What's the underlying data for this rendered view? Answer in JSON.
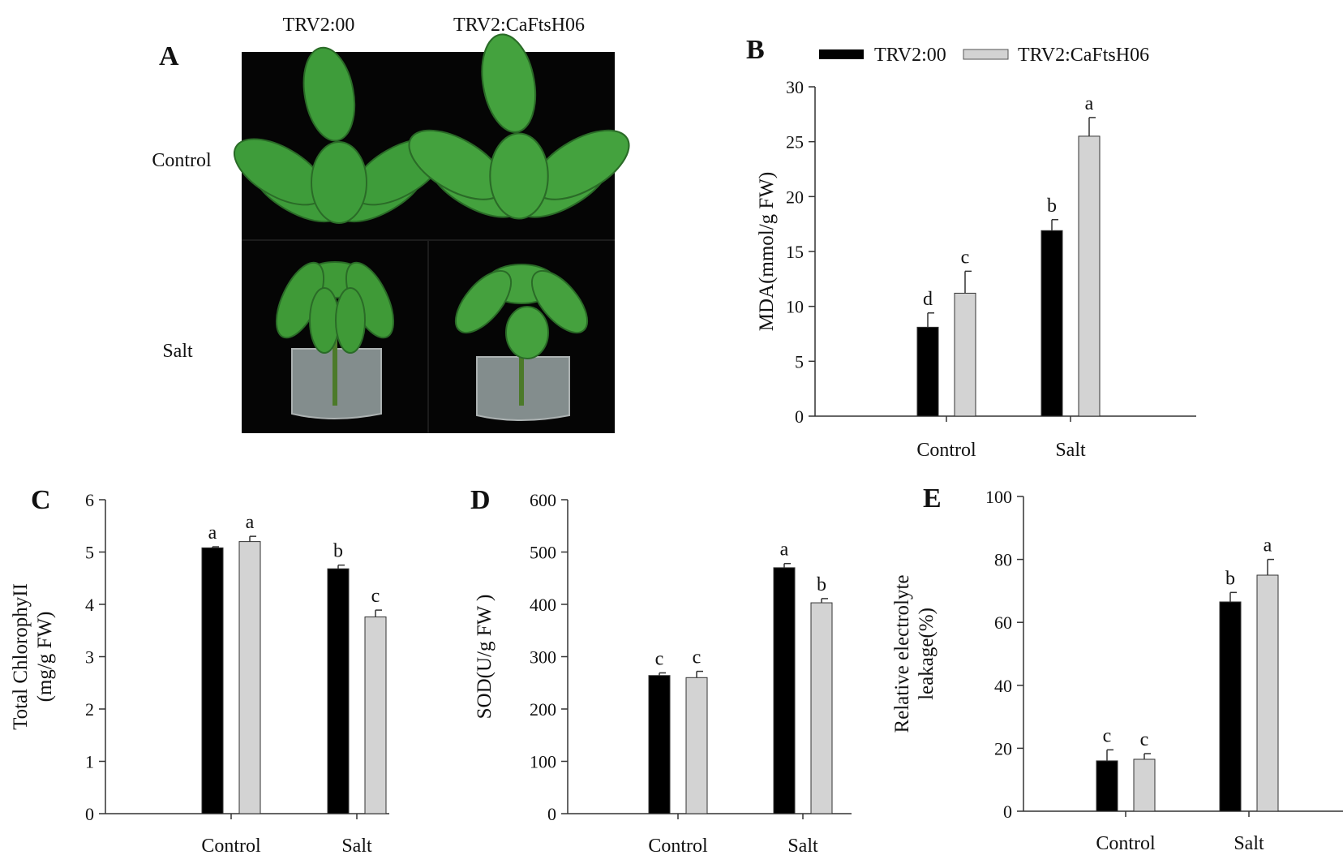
{
  "panel_a": {
    "letter": "A",
    "column_labels": [
      "TRV2:00",
      "TRV2:CaFtsH06"
    ],
    "row_labels": [
      "Control",
      "Salt"
    ]
  },
  "legend": [
    "TRV2:00",
    "TRV2:CaFtsH06"
  ],
  "colors": {
    "TRV2:00": "#000000",
    "TRV2:CaFtsH06": "#d3d3d3",
    "photo_background": "#050505",
    "leaf": "#3e9c3a"
  },
  "chart_data": [
    {
      "id": "B",
      "letter": "B",
      "type": "bar",
      "categories": [
        "Control",
        "Salt"
      ],
      "series": [
        {
          "name": "TRV2:00",
          "values": [
            8.1,
            16.9
          ],
          "errors": [
            1.3,
            1.0
          ],
          "labels": [
            "d",
            "b"
          ]
        },
        {
          "name": "TRV2:CaFtsH06",
          "values": [
            11.2,
            25.5
          ],
          "errors": [
            2.0,
            1.7
          ],
          "labels": [
            "c",
            "a"
          ]
        }
      ],
      "ylabel": "MDA(mmol/g FW)",
      "ylim": [
        0,
        30
      ],
      "yticks": [
        0,
        5,
        10,
        15,
        20,
        25,
        30
      ]
    },
    {
      "id": "C",
      "letter": "C",
      "type": "bar",
      "categories": [
        "Control",
        "Salt"
      ],
      "series": [
        {
          "name": "TRV2:00",
          "values": [
            5.08,
            4.68
          ],
          "errors": [
            0.02,
            0.07
          ],
          "labels": [
            "a",
            "b"
          ]
        },
        {
          "name": "TRV2:CaFtsH06",
          "values": [
            5.2,
            3.76
          ],
          "errors": [
            0.1,
            0.13
          ],
          "labels": [
            "a",
            "c"
          ]
        }
      ],
      "ylabel": [
        "Total ChlorophyII",
        "(mg/g FW)"
      ],
      "ylim": [
        0,
        6
      ],
      "yticks": [
        0,
        1,
        2,
        3,
        4,
        5,
        6
      ]
    },
    {
      "id": "D",
      "letter": "D",
      "type": "bar",
      "categories": [
        "Control",
        "Salt"
      ],
      "series": [
        {
          "name": "TRV2:00",
          "values": [
            264,
            470
          ],
          "errors": [
            5,
            8
          ],
          "labels": [
            "c",
            "a"
          ]
        },
        {
          "name": "TRV2:CaFtsH06",
          "values": [
            260,
            403
          ],
          "errors": [
            12,
            8
          ],
          "labels": [
            "c",
            "b"
          ]
        }
      ],
      "ylabel": "SOD(U/g FW )",
      "ylim": [
        0,
        600
      ],
      "yticks": [
        0,
        100,
        200,
        300,
        400,
        500,
        600
      ]
    },
    {
      "id": "E",
      "letter": "E",
      "type": "bar",
      "categories": [
        "Control",
        "Salt"
      ],
      "series": [
        {
          "name": "TRV2:00",
          "values": [
            16,
            66.5
          ],
          "errors": [
            3.5,
            3.0
          ],
          "labels": [
            "c",
            "b"
          ]
        },
        {
          "name": "TRV2:CaFtsH06",
          "values": [
            16.5,
            75
          ],
          "errors": [
            1.8,
            5.0
          ],
          "labels": [
            "c",
            "a"
          ]
        }
      ],
      "ylabel": [
        "Relative electrolyte",
        "leakage(%)"
      ],
      "ylim": [
        0,
        100
      ],
      "yticks": [
        0,
        20,
        40,
        60,
        80,
        100
      ]
    }
  ]
}
